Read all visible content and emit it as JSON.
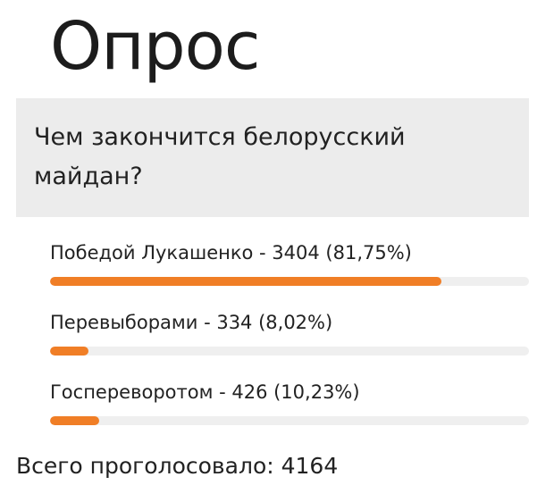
{
  "poll": {
    "title": "Опрос",
    "question": "Чем закончится белорусский майдан?",
    "options": [
      {
        "label": "Победой Лукашенко - 3404 (81,75%)",
        "fraction": 0.8175
      },
      {
        "label": "Перевыборами - 334 (8,02%)",
        "fraction": 0.0802
      },
      {
        "label": "Госпереворотом - 426 (10,23%)",
        "fraction": 0.1023
      }
    ],
    "total": "Всего проголосовало: 4164"
  },
  "colors": {
    "bar_fill": "#f07e26",
    "bar_track": "#efefef",
    "question_bg": "#ececec"
  }
}
